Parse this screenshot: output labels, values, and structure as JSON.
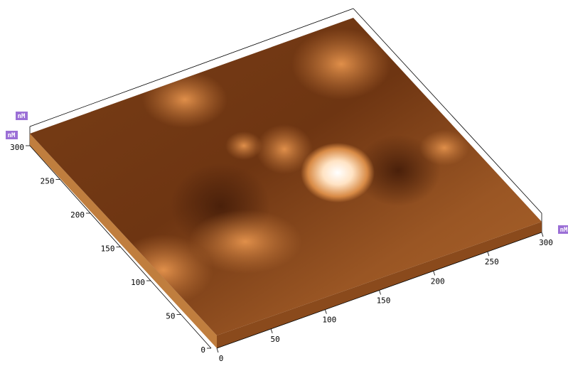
{
  "units": {
    "z": "nM",
    "y": "nM",
    "x": "nM"
  },
  "y_axis": {
    "ticks": [
      0,
      50,
      100,
      150,
      200,
      250,
      300
    ]
  },
  "x_axis": {
    "ticks": [
      0,
      50,
      100,
      150,
      200,
      250,
      300
    ]
  }
}
